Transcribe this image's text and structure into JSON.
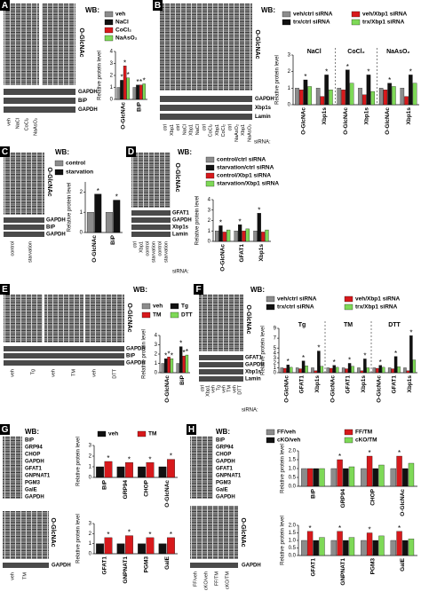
{
  "chart_data": [
    {
      "type": "bar",
      "ylabel": "Relative protein level",
      "categories": [
        "O-GlcNAc",
        "BiP"
      ],
      "ylim": [
        0,
        4
      ],
      "yticks": [
        0,
        1,
        2,
        3,
        4
      ],
      "legend": true,
      "sig_label": "*",
      "series": [
        {
          "name": "veh",
          "color": "#8c8c8c",
          "values": [
            1,
            1
          ],
          "significant": [
            false,
            false
          ]
        },
        {
          "name": "NaCl",
          "color": "#111111",
          "values": [
            1.6,
            1.2
          ],
          "significant": [
            true,
            true
          ]
        },
        {
          "name": "CoCl₂",
          "color": "#d7191c",
          "values": [
            2.8,
            1.2
          ],
          "significant": [
            true,
            true
          ]
        },
        {
          "name": "NaAsO₂",
          "color": "#7ed957",
          "values": [
            1.8,
            1.3
          ],
          "significant": [
            true,
            true
          ]
        }
      ]
    },
    {
      "type": "bar",
      "ylabel": "Relative protein level",
      "categories": [
        "O-GlcNAc",
        "Xbp1s",
        "O-GlcNAc",
        "Xbp1s",
        "O-GlcNAc",
        "Xbp1s"
      ],
      "groups": [
        "NaCl",
        "CoCl₂",
        "NaAsO₂"
      ],
      "ylim": [
        0,
        3
      ],
      "yticks": [
        0,
        1,
        2,
        3
      ],
      "legend": true,
      "sig_label": "*",
      "series": [
        {
          "name": "veh/ctrl siRNA",
          "color": "#8c8c8c",
          "values": [
            1,
            1,
            1,
            1,
            1,
            1
          ],
          "significant": [
            false,
            false,
            false,
            false,
            false,
            false
          ]
        },
        {
          "name": "veh/Xbp1 siRNA",
          "color": "#d7191c",
          "values": [
            0.9,
            0.5,
            0.9,
            0.6,
            0.9,
            0.5
          ],
          "significant": [
            false,
            false,
            false,
            false,
            false,
            false
          ]
        },
        {
          "name": "trx/ctrl siRNA",
          "color": "#111111",
          "values": [
            1.5,
            1.8,
            2.1,
            1.8,
            1.3,
            1.8
          ],
          "significant": [
            true,
            true,
            true,
            true,
            true,
            true
          ]
        },
        {
          "name": "trx/Xbp1 siRNA",
          "color": "#7ed957",
          "values": [
            1.1,
            0.9,
            1.3,
            0.8,
            1.1,
            1.3
          ],
          "significant": [
            false,
            false,
            false,
            false,
            false,
            false
          ]
        }
      ]
    },
    {
      "type": "bar",
      "ylabel": "Relative protein level",
      "categories": [
        "O-GlcNAc",
        "BiP"
      ],
      "ylim": [
        0,
        2.5
      ],
      "yticks": [
        0,
        1,
        2
      ],
      "legend": true,
      "sig_label": "*",
      "series": [
        {
          "name": "control",
          "color": "#8c8c8c",
          "values": [
            1,
            1
          ],
          "significant": [
            false,
            false
          ]
        },
        {
          "name": "starvation",
          "color": "#111111",
          "values": [
            1.9,
            1.6
          ],
          "significant": [
            true,
            true
          ]
        }
      ]
    },
    {
      "type": "bar",
      "ylabel": "Relative protein level",
      "categories": [
        "O-GlcNAc",
        "GFAT1",
        "Xbp1s"
      ],
      "ylim": [
        0,
        4
      ],
      "yticks": [
        0,
        1,
        2,
        3,
        4
      ],
      "legend": true,
      "sig_label": "*",
      "series": [
        {
          "name": "control/ctrl siRNA",
          "color": "#8c8c8c",
          "values": [
            1,
            1,
            1
          ],
          "significant": [
            false,
            false,
            false
          ]
        },
        {
          "name": "starvation/ctrl siRNA",
          "color": "#111111",
          "values": [
            1.5,
            1.6,
            2.7
          ],
          "significant": [
            true,
            true,
            true
          ]
        },
        {
          "name": "control/Xbp1 siRNA",
          "color": "#d7191c",
          "values": [
            0.9,
            1,
            0.9
          ],
          "significant": [
            false,
            false,
            false
          ]
        },
        {
          "name": "starvation/Xbp1 siRNA",
          "color": "#7ed957",
          "values": [
            1.1,
            1.2,
            1.1
          ],
          "significant": [
            false,
            false,
            false
          ]
        }
      ]
    },
    {
      "type": "bar",
      "ylabel": "Relative protein level",
      "categories": [
        "O-GlcNAc",
        "BiP"
      ],
      "ylim": [
        0,
        4
      ],
      "yticks": [
        0,
        1,
        2,
        3,
        4
      ],
      "legend": true,
      "sig_label": "*",
      "series": [
        {
          "name": "veh",
          "color": "#8c8c8c",
          "values": [
            1,
            1
          ],
          "significant": [
            false,
            false
          ]
        },
        {
          "name": "Tg",
          "color": "#111111",
          "values": [
            1.5,
            2.8
          ],
          "significant": [
            true,
            true
          ]
        },
        {
          "name": "TM",
          "color": "#d7191c",
          "values": [
            1.7,
            1.8
          ],
          "significant": [
            true,
            true
          ]
        },
        {
          "name": "DTT",
          "color": "#7ed957",
          "values": [
            1.5,
            1.9
          ],
          "significant": [
            true,
            true
          ]
        }
      ]
    },
    {
      "type": "bar",
      "ylabel": "Relative protein level",
      "categories": [
        "O-GlcNAc",
        "GFAT1",
        "Xbp1s",
        "O-GlcNAc",
        "GFAT1",
        "Xbp1s",
        "O-GlcNAc",
        "GFAT1",
        "Xbp1s"
      ],
      "groups": [
        "Tg",
        "TM",
        "DTT"
      ],
      "ylim": [
        0,
        9
      ],
      "yticks": [
        0,
        1,
        2,
        3,
        4,
        5,
        7,
        9
      ],
      "legend": true,
      "sig_label": "*",
      "series": [
        {
          "name": "veh/ctrl siRNA",
          "color": "#8c8c8c",
          "values": [
            1,
            1,
            1,
            1,
            1,
            1,
            1,
            1,
            1
          ],
          "significant": [
            false,
            false,
            false,
            false,
            false,
            false,
            false,
            false,
            false
          ]
        },
        {
          "name": "veh/Xbp1 siRNA",
          "color": "#d7191c",
          "values": [
            0.9,
            0.8,
            0.4,
            0.9,
            0.8,
            0.4,
            0.9,
            0.8,
            0.4
          ],
          "significant": [
            false,
            false,
            false,
            false,
            false,
            false,
            false,
            false,
            false
          ]
        },
        {
          "name": "trx/ctrl siRNA",
          "color": "#111111",
          "values": [
            1.6,
            2.4,
            4.4,
            1.5,
            1.9,
            2.8,
            1.5,
            3.3,
            7.5
          ],
          "significant": [
            true,
            true,
            true,
            true,
            true,
            true,
            true,
            true,
            true
          ]
        },
        {
          "name": "trx/Xbp1 siRNA",
          "color": "#7ed957",
          "values": [
            1.1,
            1.4,
            1.3,
            1.1,
            1.3,
            1,
            1.1,
            1.2,
            2.6
          ],
          "significant": [
            false,
            false,
            false,
            false,
            false,
            false,
            false,
            false,
            false
          ]
        }
      ]
    },
    {
      "type": "bar",
      "ylabel": "Relative protein level",
      "categories": [
        "BiP",
        "GRP94",
        "CHOP",
        "O-GlcNAc"
      ],
      "ylim": [
        0,
        3
      ],
      "yticks": [
        0,
        1,
        2,
        3
      ],
      "legend": true,
      "sig_label": "*",
      "series": [
        {
          "name": "veh",
          "color": "#111111",
          "values": [
            1,
            1,
            1,
            1
          ],
          "significant": [
            false,
            false,
            false,
            false
          ]
        },
        {
          "name": "TM",
          "color": "#d7191c",
          "values": [
            1.5,
            1.4,
            1.4,
            1.7
          ],
          "significant": [
            true,
            true,
            true,
            true
          ]
        }
      ]
    },
    {
      "type": "bar",
      "ylabel": "Relative protein level",
      "categories": [
        "GFAT1",
        "GNPNAT1",
        "PGM3",
        "GalE"
      ],
      "ylim": [
        0,
        3
      ],
      "yticks": [
        0,
        1,
        2,
        3
      ],
      "legend": false,
      "sig_label": "*",
      "series": [
        {
          "name": "veh",
          "color": "#111111",
          "values": [
            1,
            1,
            1,
            1
          ],
          "significant": [
            false,
            false,
            false,
            false
          ]
        },
        {
          "name": "TM",
          "color": "#d7191c",
          "values": [
            1.6,
            1.8,
            1.6,
            1.6
          ],
          "significant": [
            true,
            true,
            true,
            true
          ]
        }
      ]
    },
    {
      "type": "bar",
      "ylabel": "Relative protein level",
      "categories": [
        "BiP",
        "GRP94",
        "CHOP",
        "O-GlcNAc"
      ],
      "ylim": [
        0,
        2
      ],
      "yticks": [
        {
          "value": 0,
          "label": "0.0"
        },
        0.5,
        {
          "value": 1,
          "label": "1.0"
        },
        1.5,
        {
          "value": 2,
          "label": "2.0"
        }
      ],
      "legend": true,
      "sig_label": "*",
      "series": [
        {
          "name": "FF/veh",
          "color": "#8c8c8c",
          "values": [
            1,
            1,
            1,
            1
          ],
          "significant": [
            false,
            false,
            false,
            false
          ]
        },
        {
          "name": "FF/TM",
          "color": "#d7191c",
          "values": [
            1,
            1.5,
            1.7,
            1.7
          ],
          "significant": [
            false,
            true,
            true,
            true
          ]
        },
        {
          "name": "cKO/veh",
          "color": "#111111",
          "values": [
            1,
            1,
            1,
            1
          ],
          "significant": [
            false,
            false,
            false,
            false
          ]
        },
        {
          "name": "cKO/TM",
          "color": "#7ed957",
          "values": [
            1,
            1.1,
            1.2,
            1.3
          ],
          "significant": [
            false,
            false,
            false,
            false
          ]
        }
      ]
    },
    {
      "type": "bar",
      "ylabel": "Relative protein level",
      "categories": [
        "GFAT1",
        "GNPNAT1",
        "PGM3",
        "GalE"
      ],
      "ylim": [
        0,
        2
      ],
      "yticks": [
        {
          "value": 0,
          "label": "0.0"
        },
        0.5,
        {
          "value": 1,
          "label": "1.0"
        },
        1.5,
        {
          "value": 2,
          "label": "2.0"
        }
      ],
      "legend": false,
      "sig_label": "*",
      "series": [
        {
          "name": "FF/veh",
          "color": "#8c8c8c",
          "values": [
            1,
            1,
            1,
            1
          ],
          "significant": [
            false,
            false,
            false,
            false
          ]
        },
        {
          "name": "FF/TM",
          "color": "#d7191c",
          "values": [
            1.6,
            1.6,
            1.5,
            1.6
          ],
          "significant": [
            true,
            true,
            true,
            true
          ]
        },
        {
          "name": "cKO/veh",
          "color": "#111111",
          "values": [
            1,
            1,
            1,
            1
          ],
          "significant": [
            false,
            false,
            false,
            false
          ]
        },
        {
          "name": "cKO/TM",
          "color": "#7ed957",
          "values": [
            1.2,
            1.2,
            1.3,
            1.1
          ],
          "significant": [
            false,
            false,
            false,
            false
          ]
        }
      ]
    }
  ],
  "panels": [
    {
      "letter": "A",
      "wb": "WB:",
      "main_label": "O-GlcNAc",
      "labels": [
        "GAPDH",
        "BiP",
        "GAPDH"
      ],
      "lanes": [
        "veh",
        "NaCl",
        "CoCl₂",
        "NaAsO₂"
      ]
    },
    {
      "letter": "B",
      "wb": "WB:",
      "main_label": "O-GlcNAc",
      "labels": [
        "GAPDH",
        "Xbp1s",
        "Lamin"
      ],
      "lanes": [
        "ctrl",
        "Xbp1",
        "ctrl",
        "NaCl",
        "Xbp1",
        "NaCl",
        "ctrl",
        "CoCl₂",
        "Xbp1",
        "CoCl₂",
        "ctrl",
        "NaAsO₂",
        "Xbp1",
        "NaAsO₂"
      ],
      "sirna": "siRNA:"
    },
    {
      "letter": "C",
      "wb": "WB:",
      "main_label": "O-GlcNAc",
      "labels": [
        "GAPDH",
        "BiP",
        "GAPDH"
      ],
      "lanes": [
        "control",
        "starvation"
      ]
    },
    {
      "letter": "D",
      "wb": "WB:",
      "main_label": "O-GlcNAc",
      "labels": [
        "GFAT1",
        "GAPDH",
        "Xbp1s",
        "Lamin"
      ],
      "lanes": [
        "ctrl",
        "Xbp1",
        "control",
        "starvation",
        "control",
        "starvation"
      ],
      "sirna": "siRNA:"
    },
    {
      "letter": "E",
      "wb": "WB:",
      "main_label": "O-GlcNAc",
      "labels": [
        "GAPDH",
        "BiP",
        "GAPDH"
      ],
      "lanes": [
        "veh",
        "Tg",
        "veh",
        "TM",
        "veh",
        "DTT"
      ]
    },
    {
      "letter": "F",
      "wb": "WB:",
      "main_label": "O-GlcNAc",
      "labels": [
        "GFAT1",
        "GAPDH",
        "Xbp1s",
        "Lamin"
      ],
      "lanes": [
        "ctrl",
        "Xbp1",
        "veh",
        "Tg",
        "veh",
        "TM",
        "veh",
        "DTT"
      ],
      "sirna": "siRNA:"
    },
    {
      "letter": "G",
      "wb": "WB:",
      "main_label": "O-GlcNAc",
      "labels": [
        "BiP",
        "GRP94",
        "CHOP",
        "GAPDH",
        "GFAT1",
        "GNPNAT1",
        "PGM3",
        "GalE",
        "GAPDH"
      ],
      "labels2": [
        "GAPDH"
      ],
      "lanes": [
        "veh",
        "TM"
      ]
    },
    {
      "letter": "H",
      "wb": "WB:",
      "main_label": "O-GlcNAc",
      "labels": [
        "BiP",
        "GRP94",
        "CHOP",
        "GAPDH",
        "GFAT1",
        "GNPNAT1",
        "PGM3",
        "GalE",
        "GAPDH"
      ],
      "labels2": [
        "GAPDH"
      ],
      "lanes": [
        "FF/veh",
        "cKO/veh",
        "FF/TM",
        "cKO/TM"
      ]
    }
  ]
}
